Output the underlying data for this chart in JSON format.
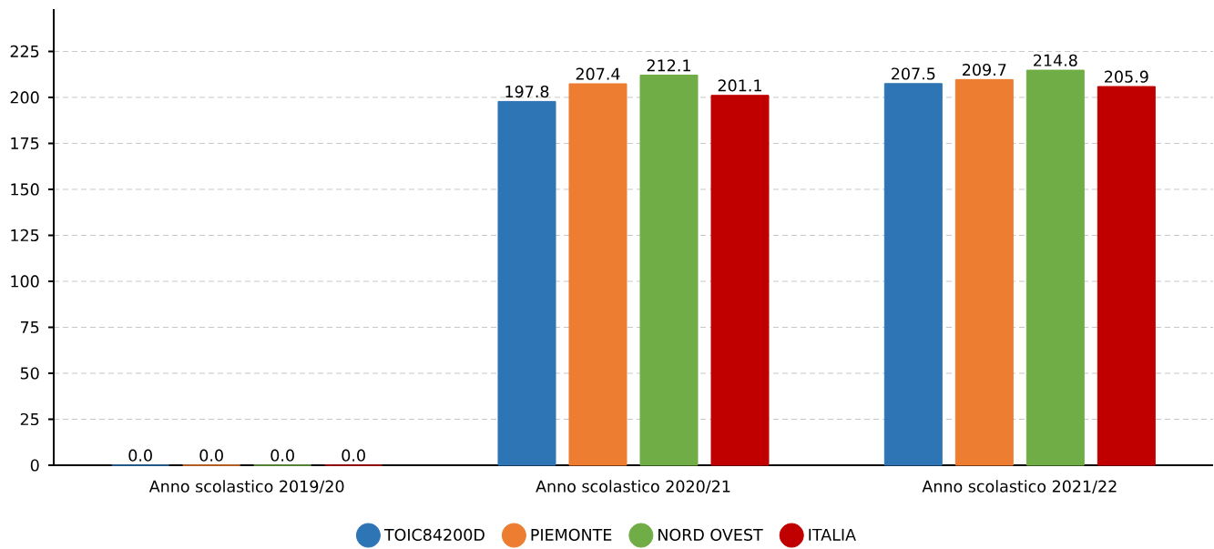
{
  "chart_data": {
    "type": "bar",
    "categories": [
      "Anno scolastico 2019/20",
      "Anno scolastico 2020/21",
      "Anno scolastico 2021/22"
    ],
    "series": [
      {
        "name": "TOIC84200D",
        "color": "#2e75b6",
        "values": [
          0,
          197.8,
          207.5
        ],
        "value_labels": [
          "0.0",
          "197.8",
          "207.5"
        ]
      },
      {
        "name": "PIEMONTE",
        "color": "#ed7d31",
        "values": [
          0,
          207.4,
          209.7
        ],
        "value_labels": [
          "0.0",
          "207.4",
          "209.7"
        ]
      },
      {
        "name": "NORD OVEST",
        "color": "#70ad47",
        "values": [
          0,
          212.1,
          214.8
        ],
        "value_labels": [
          "0.0",
          "212.1",
          "214.8"
        ]
      },
      {
        "name": "ITALIA",
        "color": "#c00000",
        "values": [
          0,
          201.1,
          205.9
        ],
        "value_labels": [
          "0.0",
          "201.1",
          "205.9"
        ]
      }
    ],
    "ylim": [
      0,
      248
    ],
    "yticks": [
      0,
      25,
      50,
      75,
      100,
      125,
      150,
      175,
      200,
      225
    ],
    "grid": "y",
    "legend": "bottom"
  }
}
